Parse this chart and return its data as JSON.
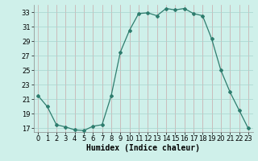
{
  "x": [
    0,
    1,
    2,
    3,
    4,
    5,
    6,
    7,
    8,
    9,
    10,
    11,
    12,
    13,
    14,
    15,
    16,
    17,
    18,
    19,
    20,
    21,
    22,
    23
  ],
  "y": [
    21.5,
    20.0,
    17.5,
    17.2,
    16.8,
    16.7,
    17.3,
    17.5,
    21.5,
    27.5,
    30.5,
    32.8,
    32.9,
    32.5,
    33.5,
    33.3,
    33.5,
    32.8,
    32.5,
    29.3,
    25.0,
    22.0,
    19.5,
    17.0
  ],
  "line_color": "#2e7d6e",
  "marker": "D",
  "marker_size": 2.0,
  "bg_color": "#cff0ea",
  "vgrid_color": "#c8a8a8",
  "hgrid_color": "#a8d4ce",
  "xlabel": "Humidex (Indice chaleur)",
  "xlim": [
    -0.5,
    23.5
  ],
  "ylim": [
    16.5,
    34.0
  ],
  "yticks": [
    17,
    19,
    21,
    23,
    25,
    27,
    29,
    31,
    33
  ],
  "xticks": [
    0,
    1,
    2,
    3,
    4,
    5,
    6,
    7,
    8,
    9,
    10,
    11,
    12,
    13,
    14,
    15,
    16,
    17,
    18,
    19,
    20,
    21,
    22,
    23
  ],
  "xlabel_fontsize": 7,
  "tick_fontsize": 6,
  "linewidth": 0.9
}
